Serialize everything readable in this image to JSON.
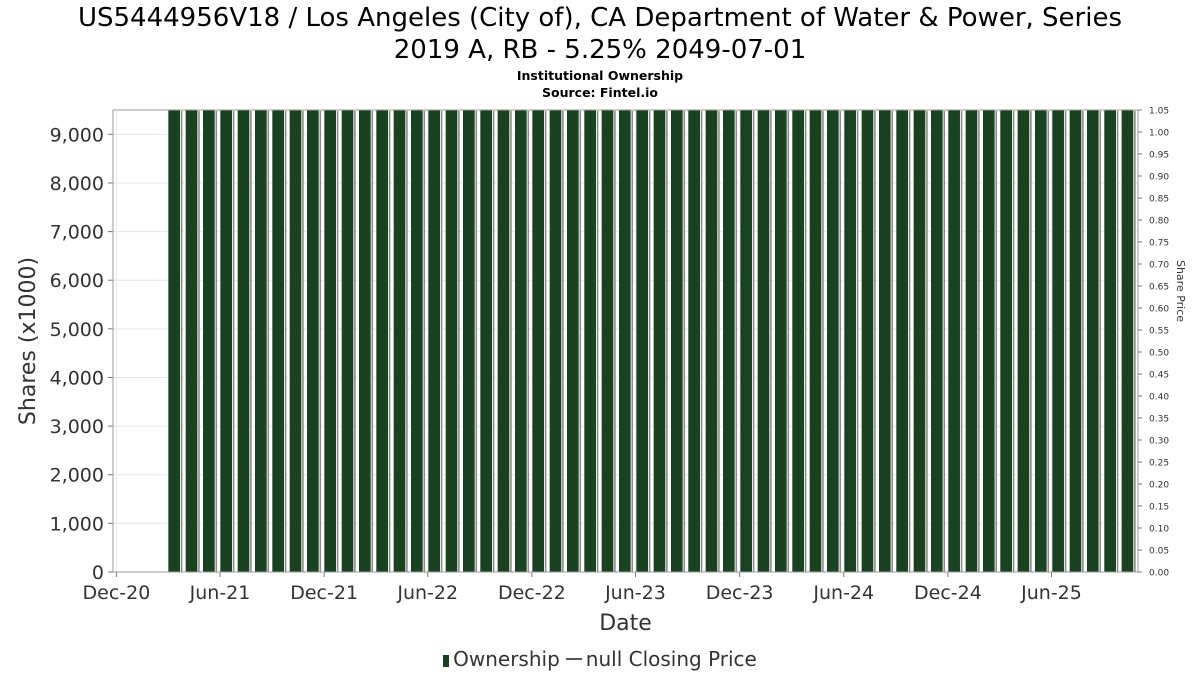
{
  "chart_data": {
    "type": "bar",
    "title": "US5444956V18 / Los Angeles (City of), CA Department of Water & Power, Series 2019 A, RB - 5.25% 2049-07-01",
    "title_line1": "US5444956V18 / Los Angeles (City of), CA Department of Water & Power, Series",
    "title_line2": "2019 A, RB - 5.25% 2049-07-01",
    "subtitle": "Institutional Ownership",
    "source": "Source: Fintel.io",
    "xlabel": "Date",
    "ylabel": "Shares (x1000)",
    "y2label": "Share Price",
    "ylim": [
      0,
      9500
    ],
    "y2lim": [
      0,
      1.05
    ],
    "x_range": [
      "2020-11-25",
      "2025-10-31"
    ],
    "y_ticks": [
      "0",
      "1,000",
      "2,000",
      "3,000",
      "4,000",
      "5,000",
      "6,000",
      "7,000",
      "8,000",
      "9,000"
    ],
    "y2_ticks": [
      "0.00",
      "0.05",
      "0.10",
      "0.15",
      "0.20",
      "0.25",
      "0.30",
      "0.35",
      "0.40",
      "0.45",
      "0.50",
      "0.55",
      "0.60",
      "0.65",
      "0.70",
      "0.75",
      "0.80",
      "0.85",
      "0.90",
      "0.95",
      "1.00",
      "1.05"
    ],
    "x_ticks": [
      {
        "label": "Dec-20",
        "date": "2020-12-01"
      },
      {
        "label": "Jun-21",
        "date": "2021-06-01"
      },
      {
        "label": "Dec-21",
        "date": "2021-12-01"
      },
      {
        "label": "Jun-22",
        "date": "2022-06-01"
      },
      {
        "label": "Dec-22",
        "date": "2022-12-01"
      },
      {
        "label": "Jun-23",
        "date": "2023-06-01"
      },
      {
        "label": "Dec-23",
        "date": "2023-12-01"
      },
      {
        "label": "Jun-24",
        "date": "2024-06-01"
      },
      {
        "label": "Dec-24",
        "date": "2024-12-01"
      },
      {
        "label": "Jun-25",
        "date": "2025-06-01"
      }
    ],
    "series": [
      {
        "name": "Ownership",
        "color": "#1a4221",
        "start_date": "2021-03-15",
        "end_date": "2025-10-15",
        "bar_count": 56,
        "value": 9500
      },
      {
        "name": "null Closing Price",
        "color": "#555555",
        "values": []
      }
    ],
    "grid": true,
    "legend_position": "bottom"
  },
  "legend": {
    "ownership_label": "Ownership",
    "price_label": "null Closing Price"
  }
}
